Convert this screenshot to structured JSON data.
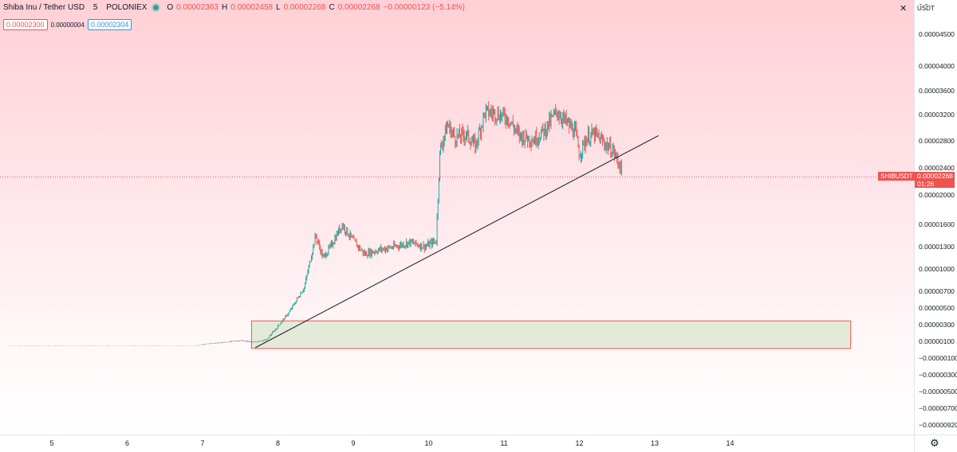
{
  "legend": {
    "title": "Shiba Inu / Tether USD",
    "interval": "5",
    "exchange": "POLONIEX",
    "open_label": "O",
    "open": "0.00002363",
    "high_label": "H",
    "high": "0.00002458",
    "low_label": "L",
    "low": "0.00002268",
    "close_label": "C",
    "close": "0.00002268",
    "change": "−0.00000123 (−5.14%)"
  },
  "quote": {
    "bid": "0.00002300",
    "spread": "0.00000004",
    "ask": "0.00002304"
  },
  "axis": {
    "currency": "USDT",
    "top_partial": "0.0"
  },
  "current": {
    "symbol": "SHIBUSDT",
    "price": "0.00002268",
    "countdown": "01:26"
  },
  "icons": {
    "close": "close-icon",
    "settings": "gear-icon"
  },
  "colors": {
    "up": "#26a69a",
    "down": "#ef5350",
    "trendline": "#131722",
    "zone_fill": "#e3ead8",
    "zone_border": "#ef5350"
  },
  "chart_data": {
    "type": "candlestick",
    "title": "Shiba Inu / Tether USD",
    "x_axis_ticks": [
      "5",
      "6",
      "7",
      "8",
      "9",
      "10",
      "11",
      "12",
      "13",
      "14"
    ],
    "y_axis_ticks": [
      "0.00004500",
      "0.00004000",
      "0.00003600",
      "0.00003200",
      "0.00002800",
      "0.00002400",
      "0.00002000",
      "0.00001600",
      "0.00001300",
      "0.00001000",
      "0.00000700",
      "0.00000500",
      "0.00000300",
      "0.00000100",
      "−0.00000100",
      "−0.00000300",
      "−0.00000500",
      "−0.00000700",
      "−0.00000920"
    ],
    "price_path": [
      [
        4.4,
        5e-07
      ],
      [
        5.0,
        5e-07
      ],
      [
        6.0,
        5e-07
      ],
      [
        6.9,
        4.5e-07
      ],
      [
        7.05,
        7e-07
      ],
      [
        7.3,
        9e-07
      ],
      [
        7.5,
        1.1e-06
      ],
      [
        7.7,
        9e-07
      ],
      [
        7.85,
        1.2e-06
      ],
      [
        8.0,
        2.8e-06
      ],
      [
        8.15,
        4.5e-06
      ],
      [
        8.35,
        7.5e-06
      ],
      [
        8.5,
        1.45e-05
      ],
      [
        8.6,
        1.15e-05
      ],
      [
        8.7,
        1.3e-05
      ],
      [
        8.85,
        1.6e-05
      ],
      [
        9.0,
        1.38e-05
      ],
      [
        9.15,
        1.2e-05
      ],
      [
        9.35,
        1.26e-05
      ],
      [
        9.55,
        1.3e-05
      ],
      [
        9.75,
        1.36e-05
      ],
      [
        9.95,
        1.3e-05
      ],
      [
        10.1,
        1.38e-05
      ],
      [
        10.15,
        2.65e-05
      ],
      [
        10.25,
        3.05e-05
      ],
      [
        10.35,
        2.85e-05
      ],
      [
        10.5,
        2.9e-05
      ],
      [
        10.62,
        2.72e-05
      ],
      [
        10.75,
        3.25e-05
      ],
      [
        10.9,
        3.22e-05
      ],
      [
        11.05,
        3.15e-05
      ],
      [
        11.2,
        2.88e-05
      ],
      [
        11.4,
        2.82e-05
      ],
      [
        11.55,
        2.98e-05
      ],
      [
        11.7,
        3.25e-05
      ],
      [
        11.85,
        3.05e-05
      ],
      [
        11.95,
        2.92e-05
      ],
      [
        12.0,
        2.6e-05
      ],
      [
        12.1,
        2.85e-05
      ],
      [
        12.2,
        2.9e-05
      ],
      [
        12.35,
        2.75e-05
      ],
      [
        12.45,
        2.65e-05
      ],
      [
        12.55,
        2.4e-05
      ],
      [
        12.57,
        2.268e-05
      ]
    ],
    "trendline": {
      "from": [
        7.7,
        2.5e-07
      ],
      "to": [
        13.05,
        2.88e-05
      ]
    },
    "zone": {
      "x": [
        7.65,
        15.6
      ],
      "y": [
        1.5e-07,
        3.45e-06
      ]
    },
    "current_price": 2.268e-05
  }
}
